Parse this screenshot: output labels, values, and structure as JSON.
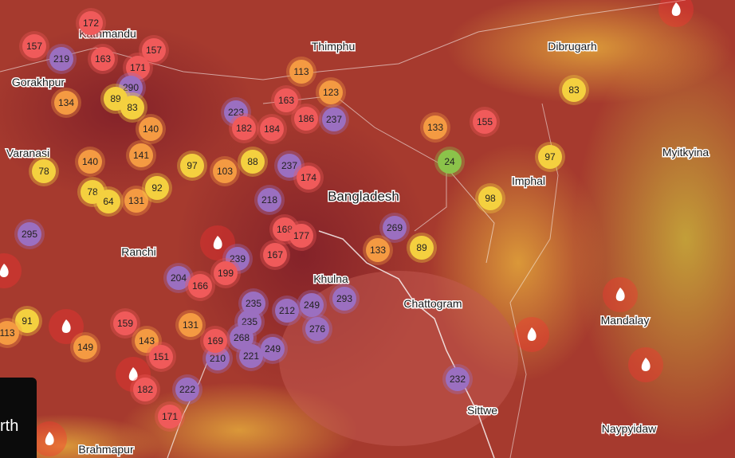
{
  "places": [
    "Kathmandu",
    "Thimphu",
    "Dibrugarh",
    "Gorakhpur",
    "Varanasi",
    "Myitkyina",
    "Imphal",
    "Bangladesh",
    "Ranchi",
    "Khulna",
    "Chattogram",
    "Mandalay",
    "Sittwe",
    "Naypyidaw",
    "Brahmapur"
  ],
  "aqi_markers": [
    172,
    157,
    219,
    163,
    157,
    171,
    290,
    89,
    83,
    134,
    140,
    141,
    140,
    78,
    78,
    64,
    131,
    92,
    97,
    103,
    88,
    223,
    182,
    184,
    163,
    186,
    237,
    123,
    113,
    237,
    174,
    218,
    133,
    155,
    83,
    97,
    24,
    98,
    269,
    133,
    89,
    168,
    167,
    239,
    199,
    204,
    166,
    295,
    235,
    212,
    249,
    293,
    276,
    235,
    268,
    249,
    221,
    210,
    169,
    131,
    159,
    143,
    151,
    149,
    91,
    113,
    182,
    222,
    171,
    232,
    177
  ],
  "corner_label": "rth"
}
